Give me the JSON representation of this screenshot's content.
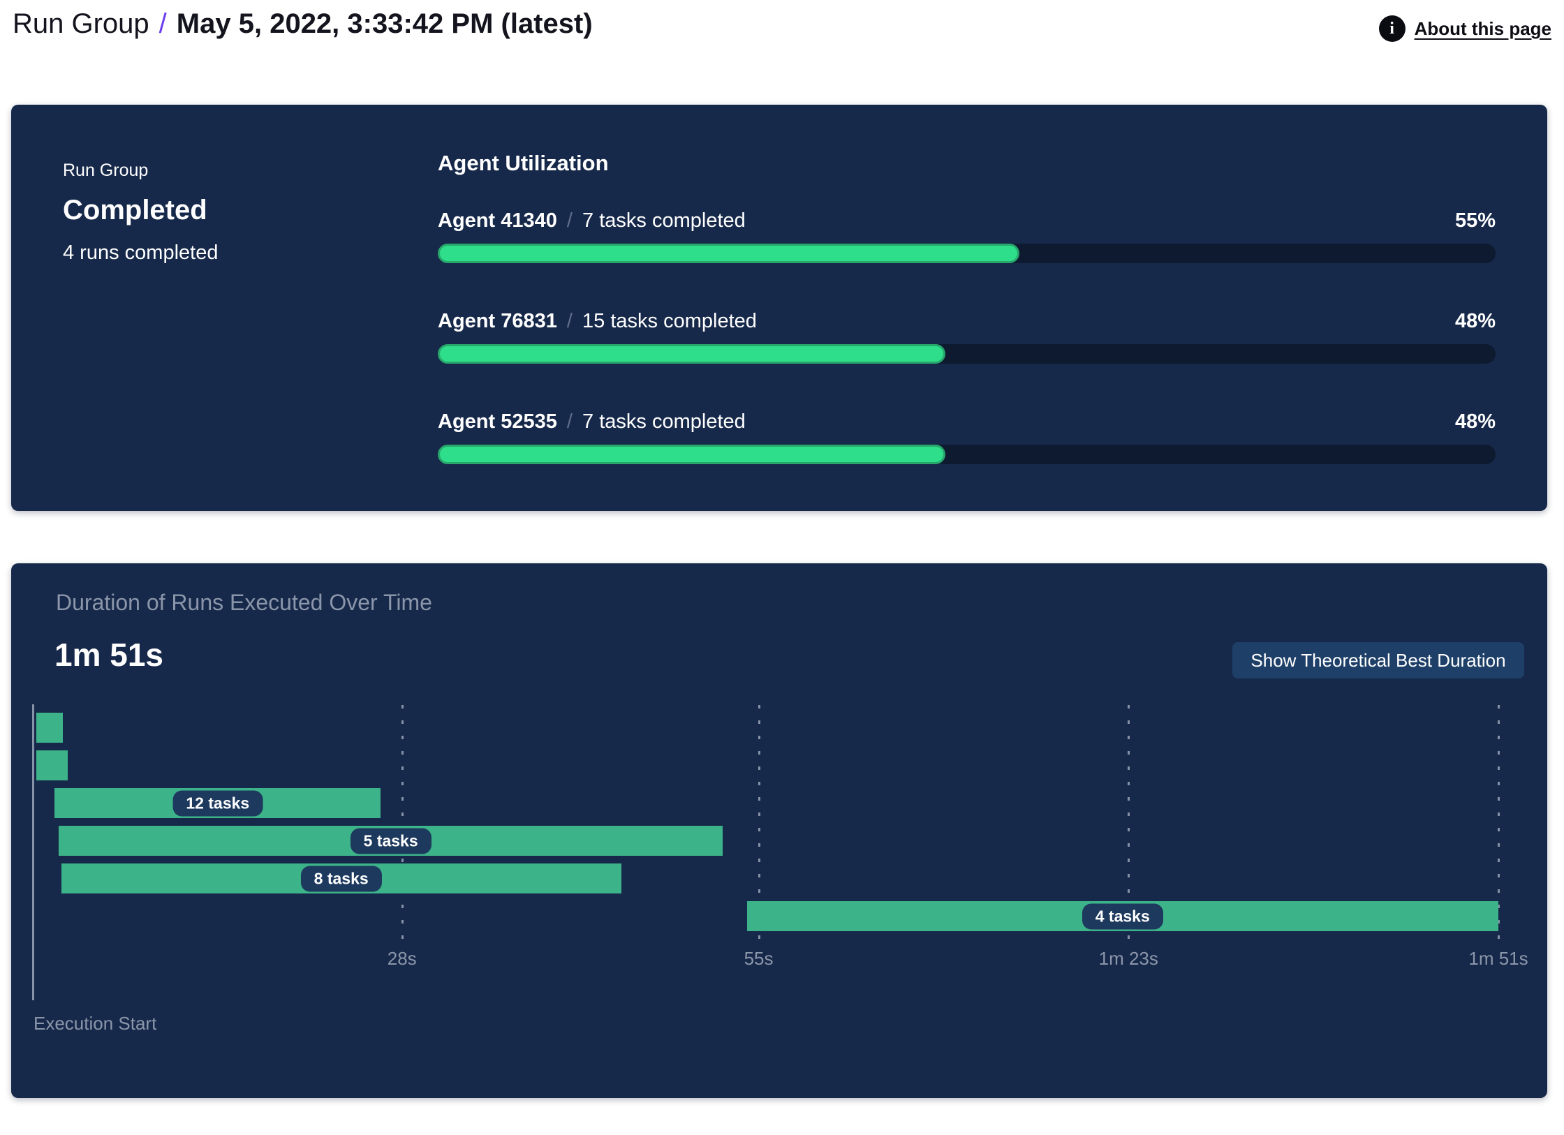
{
  "header": {
    "breadcrumb_root": "Run Group",
    "separator": "/",
    "title": "May 5, 2022, 3:33:42 PM (latest)",
    "about_link": "About this page",
    "info_icon_glyph": "i"
  },
  "summary_panel": {
    "eyebrow": "Run Group",
    "status": "Completed",
    "runs_completed": "4 runs completed",
    "section_title": "Agent Utilization",
    "agents": [
      {
        "name": "Agent 41340",
        "separator": "/",
        "tasks": "7 tasks completed",
        "percent_label": "55%",
        "percent": 55
      },
      {
        "name": "Agent 76831",
        "separator": "/",
        "tasks": "15 tasks completed",
        "percent_label": "48%",
        "percent": 48
      },
      {
        "name": "Agent 52535",
        "separator": "/",
        "tasks": "7 tasks completed",
        "percent_label": "48%",
        "percent": 48
      }
    ]
  },
  "duration_panel": {
    "title": "Duration of Runs Executed Over Time",
    "total_duration": "1m 51s",
    "button_label": "Show Theoretical Best Duration",
    "execution_start_label": "Execution Start"
  },
  "chart_data": {
    "type": "bar",
    "variant": "gantt-timeline",
    "title": "Duration of Runs Executed Over Time",
    "total_duration_label": "1m 51s",
    "xlabel": "Execution Start",
    "x_range_seconds": [
      0,
      111
    ],
    "x_ticks": [
      {
        "t": 28,
        "label": "28s"
      },
      {
        "t": 55,
        "label": "55s"
      },
      {
        "t": 83,
        "label": "1m 23s"
      },
      {
        "t": 111,
        "label": "1m 51s"
      }
    ],
    "runs": [
      {
        "start_s": 0.3,
        "end_s": 2.3,
        "label": ""
      },
      {
        "start_s": 0.3,
        "end_s": 2.7,
        "label": ""
      },
      {
        "start_s": 1.7,
        "end_s": 26.4,
        "label": "12 tasks"
      },
      {
        "start_s": 2.0,
        "end_s": 52.3,
        "label": "5 tasks"
      },
      {
        "start_s": 2.2,
        "end_s": 44.6,
        "label": "8 tasks"
      },
      {
        "start_s": 54.1,
        "end_s": 111,
        "label": "4 tasks"
      }
    ]
  },
  "colors": {
    "panel_bg": "#17294a",
    "progress_track": "#0d1a2f",
    "progress_fill": "#2ede8a",
    "progress_fill_border": "#28a76d",
    "gantt_bar": "#3db389",
    "label_pill_bg": "#1d3a5e",
    "button_bg": "#1e4068",
    "muted_text": "#8b96aa",
    "accent_purple": "#6c3ef0"
  }
}
